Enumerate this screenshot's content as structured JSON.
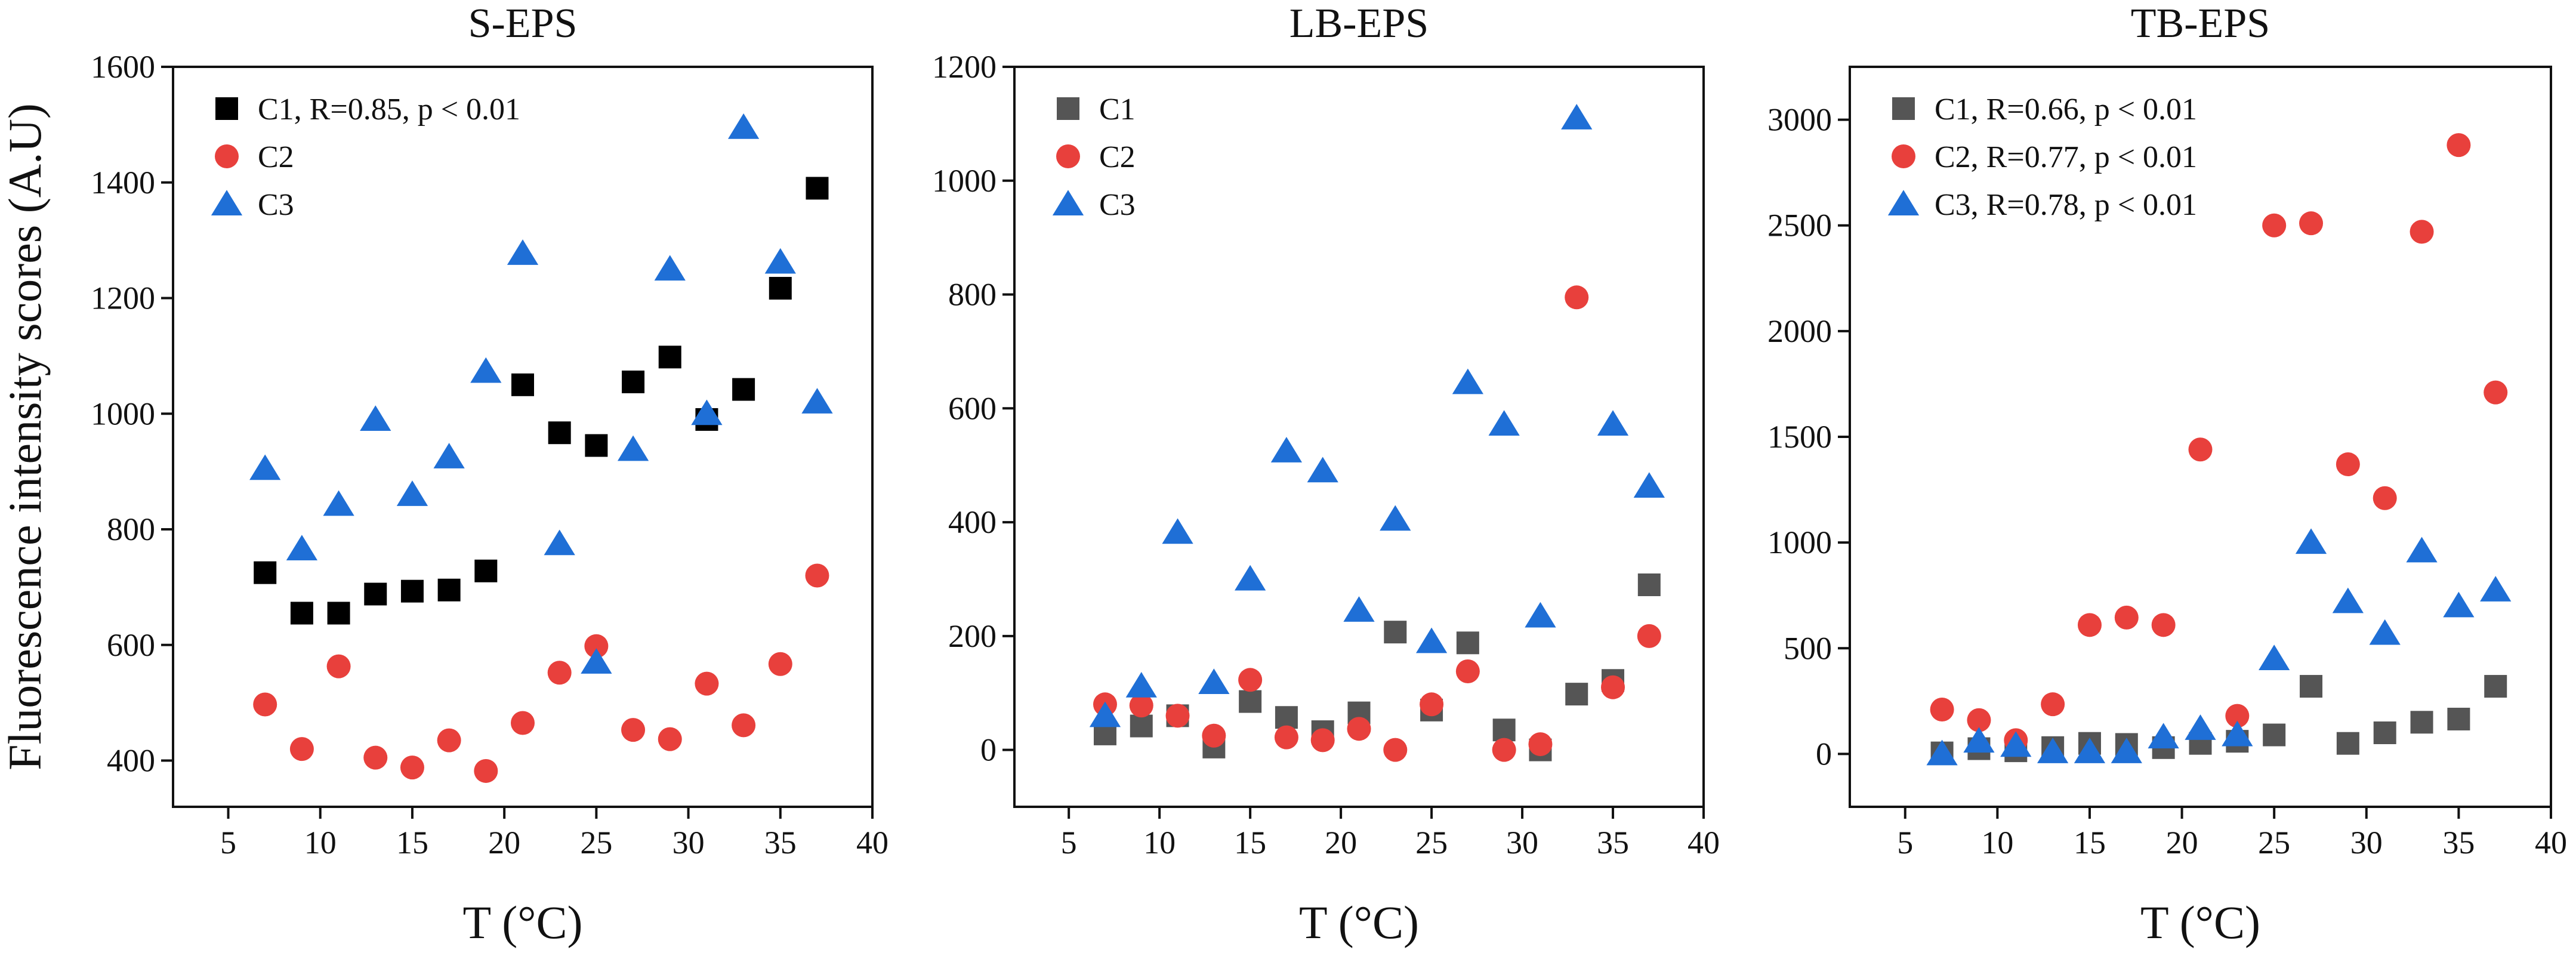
{
  "chart_data": [
    {
      "type": "scatter",
      "title": "S-EPS",
      "xlabel": "T (°C)",
      "ylabel": "Fluorescence intensity scores (A.U)",
      "xlim": [
        2,
        40
      ],
      "ylim": [
        320,
        1600
      ],
      "xticks": [
        5,
        10,
        15,
        20,
        25,
        30,
        35,
        40
      ],
      "yticks": [
        400,
        600,
        800,
        1000,
        1200,
        1400,
        1600
      ],
      "series": [
        {
          "name": "C1",
          "legend": "C1, R=0.85, p < 0.01",
          "color": "#000000",
          "marker": "square",
          "x": [
            7,
            9,
            11,
            13,
            15,
            17,
            19,
            21,
            23,
            25,
            27,
            29,
            31,
            33,
            35,
            37
          ],
          "y": [
            725,
            655,
            655,
            688,
            693,
            695,
            728,
            1050,
            967,
            945,
            1055,
            1098,
            990,
            1042,
            1217,
            1390
          ]
        },
        {
          "name": "C2",
          "legend": "C2",
          "color": "#e8403c",
          "marker": "circle",
          "x": [
            7,
            9,
            11,
            13,
            15,
            17,
            19,
            21,
            23,
            25,
            27,
            29,
            31,
            33,
            35,
            37
          ],
          "y": [
            497,
            420,
            563,
            405,
            388,
            435,
            382,
            465,
            552,
            598,
            453,
            437,
            533,
            461,
            567,
            720
          ]
        },
        {
          "name": "C3",
          "legend": "C3",
          "color": "#1f6fd6",
          "marker": "triangle",
          "x": [
            7,
            9,
            11,
            13,
            15,
            17,
            19,
            21,
            23,
            25,
            27,
            29,
            31,
            33,
            35,
            37
          ],
          "y": [
            905,
            766,
            843,
            990,
            860,
            925,
            1073,
            1277,
            775,
            570,
            938,
            1250,
            1000,
            1495,
            1262,
            1020
          ]
        }
      ]
    },
    {
      "type": "scatter",
      "title": "LB-EPS",
      "xlabel": "T (°C)",
      "ylabel": "",
      "xlim": [
        2,
        40
      ],
      "ylim": [
        -100,
        1200
      ],
      "xticks": [
        5,
        10,
        15,
        20,
        25,
        30,
        35,
        40
      ],
      "yticks": [
        0,
        200,
        400,
        600,
        800,
        1000,
        1200
      ],
      "series": [
        {
          "name": "C1",
          "legend": "C1",
          "color": "#555555",
          "marker": "square",
          "x": [
            7,
            9,
            11,
            13,
            15,
            17,
            19,
            21,
            23,
            25,
            27,
            29,
            31,
            33,
            35,
            37
          ],
          "y": [
            28,
            42,
            60,
            5,
            85,
            57,
            32,
            65,
            207,
            70,
            188,
            35,
            0,
            98,
            122,
            290
          ]
        },
        {
          "name": "C2",
          "legend": "C2",
          "color": "#e8403c",
          "marker": "circle",
          "x": [
            7,
            9,
            11,
            13,
            15,
            17,
            19,
            21,
            23,
            25,
            27,
            29,
            31,
            33,
            35,
            37
          ],
          "y": [
            80,
            78,
            60,
            25,
            123,
            22,
            17,
            37,
            0,
            80,
            138,
            0,
            10,
            795,
            110,
            200
          ]
        },
        {
          "name": "C3",
          "legend": "C3",
          "color": "#1f6fd6",
          "marker": "triangle",
          "x": [
            7,
            9,
            11,
            13,
            15,
            17,
            19,
            21,
            23,
            25,
            27,
            29,
            31,
            33,
            35,
            37
          ],
          "y": [
            60,
            112,
            382,
            118,
            300,
            525,
            490,
            245,
            405,
            190,
            645,
            572,
            235,
            1110,
            572,
            463
          ]
        }
      ]
    },
    {
      "type": "scatter",
      "title": "TB-EPS",
      "xlabel": "T (°C)",
      "ylabel": "",
      "xlim": [
        2,
        40
      ],
      "ylim": [
        -250,
        3250
      ],
      "xticks": [
        5,
        10,
        15,
        20,
        25,
        30,
        35,
        40
      ],
      "yticks": [
        0,
        500,
        1000,
        1500,
        2000,
        2500,
        3000
      ],
      "series": [
        {
          "name": "C1",
          "legend": "C1, R=0.66, p < 0.01",
          "color": "#555555",
          "marker": "square",
          "x": [
            7,
            9,
            11,
            13,
            15,
            17,
            19,
            21,
            23,
            25,
            27,
            29,
            31,
            33,
            35,
            37
          ],
          "y": [
            5,
            25,
            15,
            30,
            50,
            45,
            30,
            50,
            60,
            90,
            320,
            50,
            100,
            150,
            165,
            320
          ]
        },
        {
          "name": "C2",
          "legend": "C2, R=0.77, p < 0.01",
          "color": "#e8403c",
          "marker": "circle",
          "x": [
            7,
            9,
            11,
            13,
            15,
            17,
            19,
            21,
            23,
            25,
            27,
            29,
            31,
            33,
            35,
            37
          ],
          "y": [
            210,
            160,
            65,
            235,
            610,
            645,
            610,
            1440,
            180,
            2500,
            2510,
            1370,
            1210,
            2470,
            2880,
            1710
          ]
        },
        {
          "name": "C3",
          "legend": "C3, R=0.78, p < 0.01",
          "color": "#1f6fd6",
          "marker": "triangle",
          "x": [
            7,
            9,
            11,
            13,
            15,
            17,
            19,
            21,
            23,
            25,
            27,
            29,
            31,
            33,
            35,
            37
          ],
          "y": [
            0,
            60,
            40,
            10,
            10,
            10,
            80,
            120,
            90,
            450,
            1000,
            720,
            570,
            960,
            700,
            775
          ]
        }
      ]
    }
  ]
}
